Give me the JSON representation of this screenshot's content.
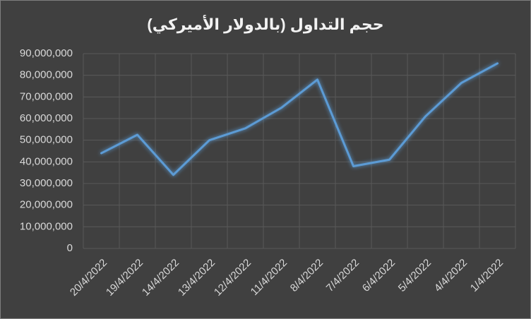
{
  "chart_data": {
    "type": "line",
    "title": "حجم التداول (بالدولار الأميركي)",
    "categories": [
      "20/4/2022",
      "19/4/2022",
      "14/4/2022",
      "13/4/2022",
      "12/4/2022",
      "11/4/2022",
      "8/4/2022",
      "7/4/2022",
      "6/4/2022",
      "5/4/2022",
      "4/4/2022",
      "1/4/2022"
    ],
    "values": [
      44000000,
      52500000,
      34000000,
      50000000,
      55500000,
      65000000,
      78000000,
      38000000,
      41000000,
      61000000,
      76500000,
      85500000
    ],
    "color": "#5b9bd5",
    "ylim": [
      0,
      90000000
    ],
    "yticks": [
      0,
      {
        "value": 10000000,
        "label": "10,000,000"
      },
      {
        "value": 20000000,
        "label": "20,000,000"
      },
      {
        "value": 30000000,
        "label": "30,000,000"
      },
      {
        "value": 40000000,
        "label": "40,000,000"
      },
      {
        "value": 50000000,
        "label": "50,000,000"
      },
      {
        "value": 60000000,
        "label": "60,000,000"
      },
      {
        "value": 70000000,
        "label": "70,000,000"
      },
      {
        "value": 80000000,
        "label": "80,000,000"
      },
      {
        "value": 90000000,
        "label": "90,000,000"
      }
    ],
    "grid": true
  }
}
